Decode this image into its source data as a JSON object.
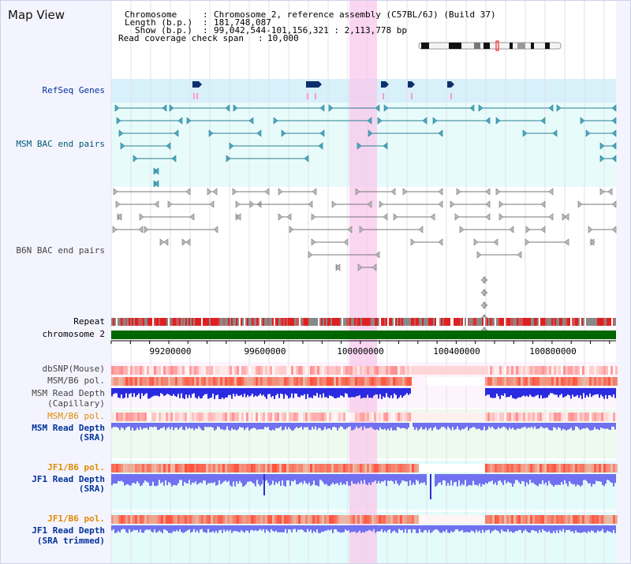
{
  "title": "Map View",
  "header": {
    "chromosome_label": "Chromosome",
    "chromosome_value": "Chromosome 2, reference assembly (C57BL/6J) (Build 37)",
    "length_label": "Length (b.p.)",
    "length_value": "181,748,087",
    "show_label": "Show (b.p.)",
    "show_value": "99,042,544-101,156,321 : 2,113,778 bp",
    "coverage_label": "Read coverage check span",
    "coverage_value": "10,000"
  },
  "tracks": {
    "refseq": "RefSeq Genes",
    "msm_bac": "MSM BAC end pairs",
    "b6n_bac": "B6N BAC end pairs",
    "repeat": "Repeat",
    "chromosome": "chromosome 2",
    "dbsnp": "dbSNP(Mouse)",
    "msm_b6_pol_1": "MSM/B6 pol.",
    "msm_read_depth_1": "MSM Read Depth",
    "msm_read_depth_1_sub": "(Capillary)",
    "msm_b6_pol_2": "MSM/B6 pol.",
    "msm_read_depth_2": "MSM Read Depth",
    "msm_read_depth_2_sub": "(SRA)",
    "jf1_b6_pol_1": "JF1/B6 pol.",
    "jf1_read_depth_1": "JF1 Read Depth",
    "jf1_read_depth_1_sub": "(SRA)",
    "jf1_b6_pol_2": "JF1/B6 pol.",
    "jf1_read_depth_2": "JF1 Read Depth",
    "jf1_read_depth_2_sub": "(SRA trimmed)"
  },
  "axis": {
    "unit": "bp",
    "ticks": [
      "99200000",
      "99600000",
      "100000000",
      "100400000",
      "100800000"
    ]
  },
  "colors": {
    "refseq_gene": "#0d2f6b",
    "refseq_marker": "#ff99cc",
    "msm_pair": "#2a7f92",
    "b6n_pair": "#777777",
    "highlight": "#f8c8ec",
    "refseq_band": "#d8f0fa",
    "bac_band": "#e8fbfb",
    "chromosome_bar": "#006600",
    "repeat_red": "#e02020",
    "depth_blue": "#2a2ae0",
    "sra_blue": "#7070f0",
    "label_dark": "#003399",
    "label_orange": "#e08a00",
    "label_grey": "#444444"
  }
}
